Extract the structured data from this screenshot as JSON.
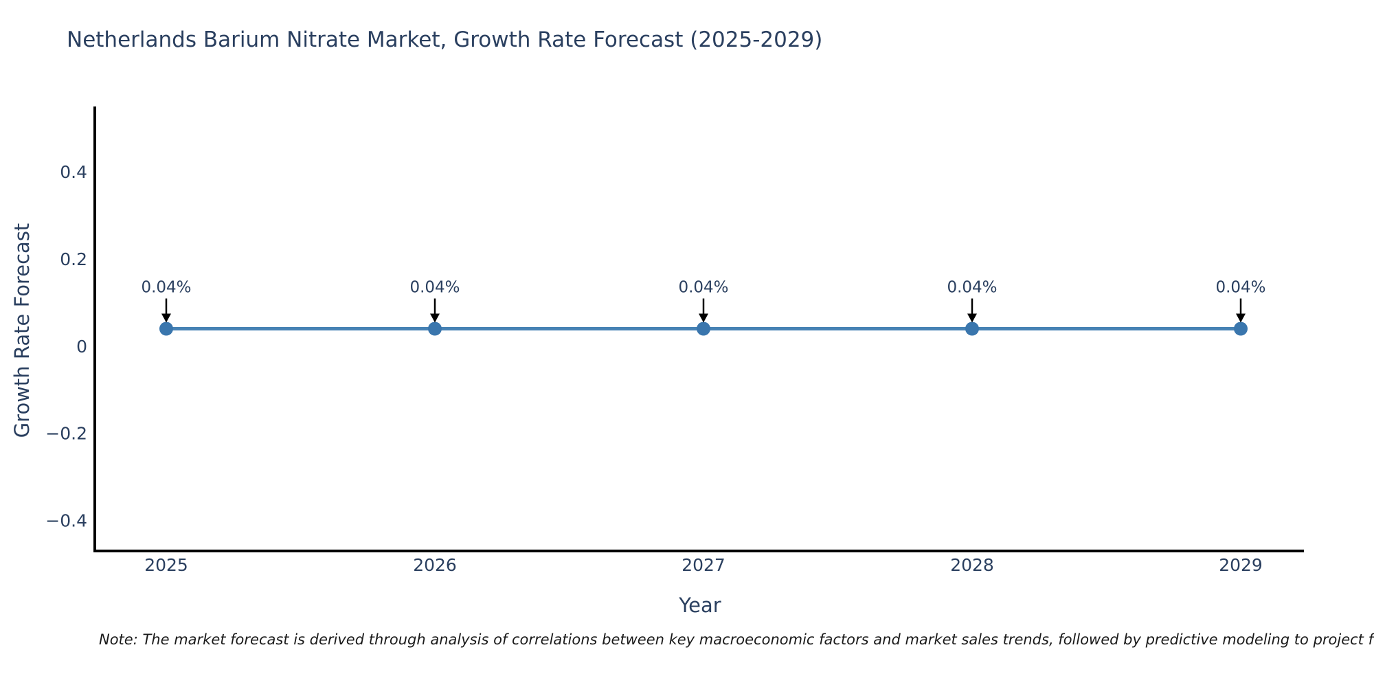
{
  "header": {
    "title": "Netherlands Barium Nitrate Market, Growth Rate Forecast (2025-2029)"
  },
  "footer": {
    "note": "Note: The market forecast is derived through analysis of correlations between key macroeconomic factors and market sales trends, followed by predictive modeling to project future sales."
  },
  "chart_data": {
    "type": "line",
    "title": "Netherlands Barium Nitrate Market, Growth Rate Forecast (2025-2029)",
    "xlabel": "Year",
    "ylabel": "Growth Rate Forecast",
    "categories": [
      "2025",
      "2026",
      "2027",
      "2028",
      "2029"
    ],
    "series": [
      {
        "name": "Growth Rate Forecast",
        "values": [
          0.04,
          0.04,
          0.04,
          0.04,
          0.04
        ]
      }
    ],
    "point_labels": [
      "0.04%",
      "0.04%",
      "0.04%",
      "0.04%",
      "0.04%"
    ],
    "ylim": [
      -0.47,
      0.55
    ],
    "yticks": {
      "values": [
        0.4,
        0.2,
        0,
        -0.2,
        -0.4
      ],
      "labels": [
        "0.4",
        "0.2",
        "0",
        "−0.2",
        "−0.4"
      ]
    },
    "grid": false,
    "legend_position": "none",
    "annotations_have_arrows": true,
    "colors": {
      "line": "#4682b4",
      "marker": "#3a76ad",
      "axis": "#000000",
      "tick_text": "#2a3f5f",
      "title_text": "#2a3f5f",
      "annotation_text": "#2a3f5f",
      "arrow": "#000000",
      "background": "#ffffff"
    }
  }
}
